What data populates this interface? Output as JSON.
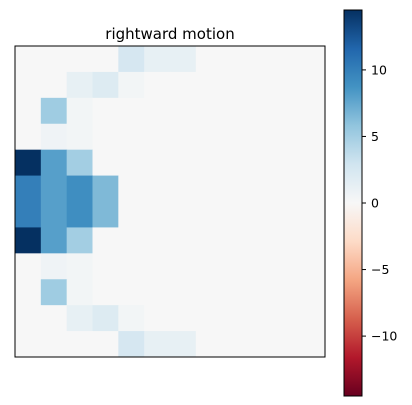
{
  "chart_data": {
    "type": "heatmap",
    "title": "rightward motion",
    "rows": 12,
    "cols": 12,
    "grid": false,
    "colormap": "RdBu",
    "vmin": -14.5,
    "vmax": 14.5,
    "colorbar": {
      "position": "right",
      "ticks": [
        10,
        5,
        0,
        -5,
        -10
      ],
      "tick_labels": [
        "10",
        "5",
        "0",
        "−5",
        "−10"
      ]
    },
    "values": [
      [
        0,
        0,
        0,
        0,
        2.5,
        1.2,
        1.2,
        0,
        0,
        0,
        0,
        0
      ],
      [
        0,
        0,
        1.2,
        2.0,
        0.4,
        0,
        0,
        0,
        0,
        0,
        0,
        0
      ],
      [
        0,
        5.2,
        0.4,
        0,
        0,
        0,
        0,
        0,
        0,
        0,
        0,
        0
      ],
      [
        0,
        0.6,
        0.4,
        0,
        0,
        0,
        0,
        0,
        0,
        0,
        0,
        0
      ],
      [
        14.5,
        8.0,
        5.0,
        0,
        0,
        0,
        0,
        0,
        0,
        0,
        0,
        0
      ],
      [
        10.0,
        8.0,
        9.0,
        6.5,
        0,
        0,
        0,
        0,
        0,
        0,
        0,
        0
      ],
      [
        10.0,
        8.0,
        9.0,
        6.5,
        0,
        0,
        0,
        0,
        0,
        0,
        0,
        0
      ],
      [
        14.5,
        8.0,
        5.0,
        0,
        0,
        0,
        0,
        0,
        0,
        0,
        0,
        0
      ],
      [
        0,
        0.6,
        0.4,
        0,
        0,
        0,
        0,
        0,
        0,
        0,
        0,
        0
      ],
      [
        0,
        5.2,
        0.4,
        0,
        0,
        0,
        0,
        0,
        0,
        0,
        0,
        0
      ],
      [
        0,
        0,
        1.2,
        2.0,
        0.4,
        0,
        0,
        0,
        0,
        0,
        0,
        0
      ],
      [
        0,
        0,
        0,
        0,
        2.5,
        1.2,
        1.2,
        0,
        0,
        0,
        0,
        0
      ]
    ]
  }
}
